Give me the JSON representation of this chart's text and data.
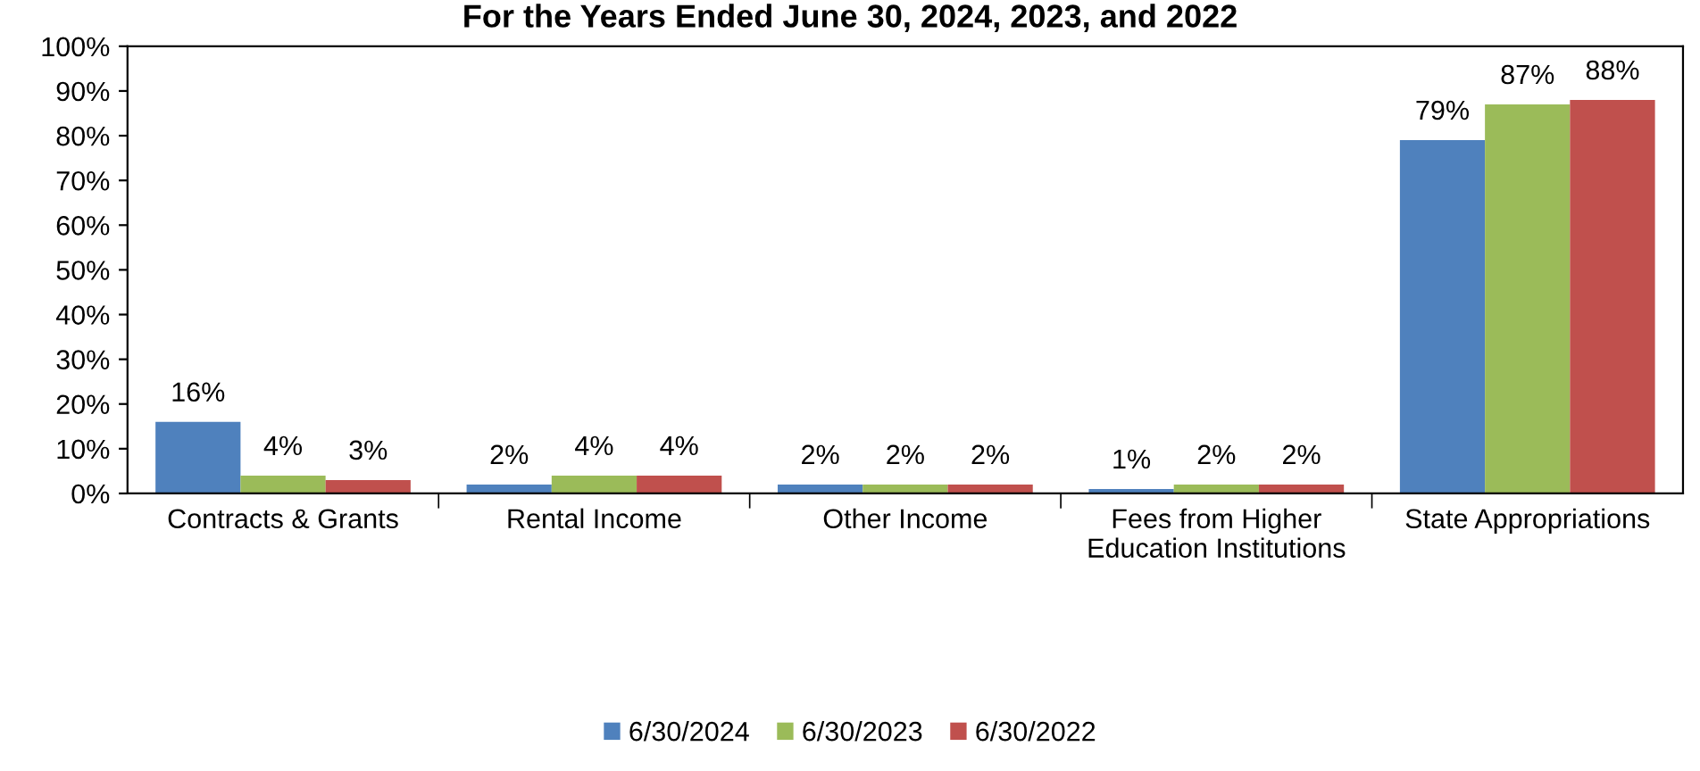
{
  "chart_data": {
    "type": "bar",
    "title": "For the Years Ended June 30, 2024, 2023, and 2022",
    "categories": [
      "Contracts & Grants",
      "Rental Income",
      "Other Income",
      "Fees from Higher\nEducation Institutions",
      "State Appropriations"
    ],
    "series": [
      {
        "name": "6/30/2024",
        "color": "#4f81bd",
        "values": [
          16,
          2,
          2,
          1,
          79
        ],
        "value_labels": [
          "16%",
          "2%",
          "2%",
          "1%",
          "79%"
        ]
      },
      {
        "name": "6/30/2023",
        "color": "#9bbb59",
        "values": [
          4,
          4,
          2,
          2,
          87
        ],
        "value_labels": [
          "4%",
          "4%",
          "2%",
          "2%",
          "87%"
        ]
      },
      {
        "name": "6/30/2022",
        "color": "#c0504d",
        "values": [
          3,
          4,
          2,
          2,
          88
        ],
        "value_labels": [
          "3%",
          "4%",
          "2%",
          "2%",
          "88%"
        ]
      }
    ],
    "ylim": [
      0,
      100
    ],
    "yticks": [
      {
        "value": 0,
        "label": "0%"
      },
      {
        "value": 10,
        "label": "10%"
      },
      {
        "value": 20,
        "label": "20%"
      },
      {
        "value": 30,
        "label": "30%"
      },
      {
        "value": 40,
        "label": "40%"
      },
      {
        "value": 50,
        "label": "50%"
      },
      {
        "value": 60,
        "label": "60%"
      },
      {
        "value": 70,
        "label": "70%"
      },
      {
        "value": 80,
        "label": "80%"
      },
      {
        "value": 90,
        "label": "90%"
      },
      {
        "value": 100,
        "label": "100%"
      }
    ],
    "grid": false,
    "legend": "bottom"
  }
}
